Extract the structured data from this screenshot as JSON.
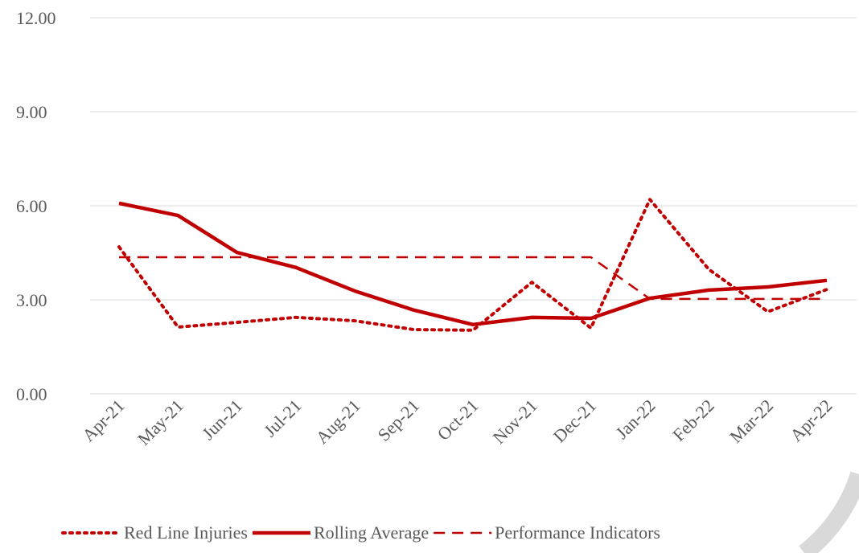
{
  "chart_data": {
    "type": "line",
    "categories": [
      "Apr-21",
      "May-21",
      "Jun-21",
      "Jul-21",
      "Aug-21",
      "Sep-21",
      "Oct-21",
      "Nov-21",
      "Dec-21",
      "Jan-22",
      "Feb-22",
      "Mar-22",
      "Apr-22"
    ],
    "series": [
      {
        "name": "Red Line Injuries",
        "color": "#c00000",
        "dash": "dotted",
        "values": [
          4.69,
          2.13,
          2.28,
          2.44,
          2.33,
          2.05,
          2.03,
          3.56,
          2.1,
          6.2,
          3.97,
          2.62,
          3.33
        ]
      },
      {
        "name": "Rolling Average",
        "color": "#c00000",
        "dash": "solid",
        "values": [
          6.08,
          5.69,
          4.51,
          4.03,
          3.28,
          2.67,
          2.21,
          2.44,
          2.41,
          3.05,
          3.31,
          3.41,
          3.62
        ]
      },
      {
        "name": "Performance Indicators",
        "color": "#c00000",
        "dash": "dashed",
        "values": [
          4.36,
          4.36,
          4.36,
          4.36,
          4.36,
          4.36,
          4.36,
          4.36,
          4.36,
          3.03,
          3.03,
          3.03,
          3.03
        ]
      }
    ],
    "ylim": [
      0,
      12
    ],
    "yticks": [
      {
        "value": 0,
        "label": "0.00"
      },
      {
        "value": 3,
        "label": "3.00"
      },
      {
        "value": 6,
        "label": "6.00"
      },
      {
        "value": 9,
        "label": "9.00"
      },
      {
        "value": 12,
        "label": "12.00"
      }
    ],
    "grid": true,
    "legend": "bottom"
  }
}
